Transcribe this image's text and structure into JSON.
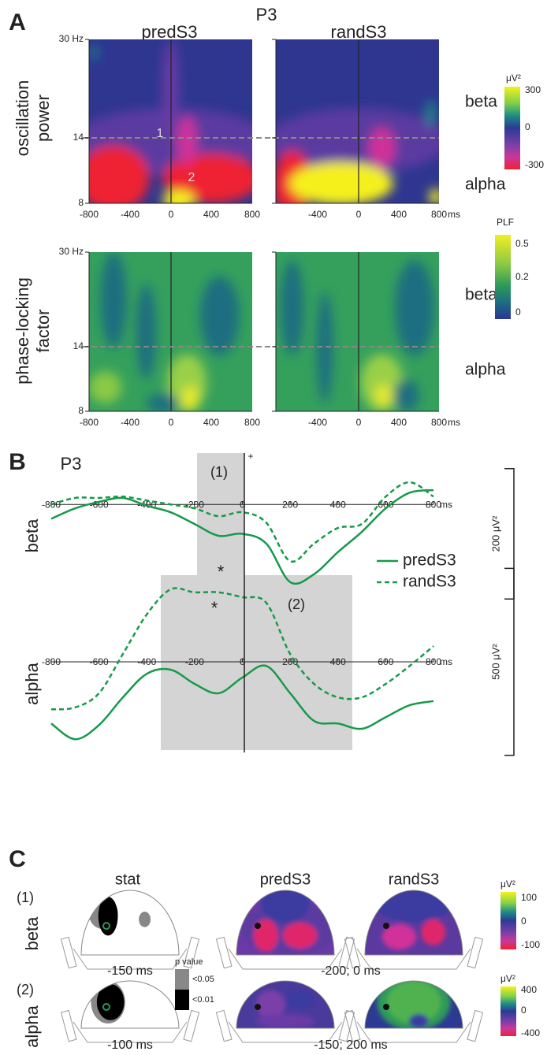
{
  "panel_a": {
    "label": "A",
    "title": "P3",
    "conditions": [
      "predS3",
      "randS3"
    ],
    "xticks": [
      "-800",
      "-400",
      "0",
      "400",
      "800"
    ],
    "xunit": "ms",
    "rows": [
      {
        "ylabel": [
          "oscillation",
          "power"
        ],
        "yticks": [
          "30 Hz",
          "14",
          "8"
        ],
        "bands": [
          "beta",
          "alpha"
        ],
        "colorbar": {
          "unit": "μV²",
          "ticks": [
            "300",
            "0",
            "-300"
          ]
        },
        "annotations": [
          "1",
          "2"
        ]
      },
      {
        "ylabel": [
          "phase-locking",
          "factor"
        ],
        "yticks": [
          "30 Hz",
          "14",
          "8"
        ],
        "bands": [
          "beta",
          "alpha"
        ],
        "colorbar": {
          "unit": "PLF",
          "ticks": [
            "0.5",
            "0.2",
            "0"
          ]
        }
      }
    ]
  },
  "panel_b": {
    "label": "B",
    "windows": [
      "(1)",
      "(2)"
    ],
    "stars": [
      "*",
      "*"
    ],
    "plus": "+"
  },
  "chart_data": [
    {
      "type": "line",
      "title": "P3",
      "ylabel": "beta",
      "x": [
        -800,
        -700,
        -600,
        -500,
        -400,
        -300,
        -200,
        -100,
        0,
        100,
        200,
        300,
        400,
        500,
        600,
        700,
        800
      ],
      "xlim": [
        -800,
        800
      ],
      "xticks": [
        -800,
        -600,
        -400,
        -200,
        0,
        200,
        400,
        600,
        800
      ],
      "xunit": "ms",
      "ylim": [
        -170,
        80
      ],
      "scalebar": {
        "value": 200,
        "label": "200 μV²"
      },
      "series": [
        {
          "name": "predS3",
          "color": "#17994a",
          "style": "solid",
          "values": [
            -22,
            -6,
            4,
            10,
            -2,
            -12,
            -30,
            -48,
            -45,
            -60,
            -119,
            -107,
            -73,
            -42,
            -6,
            18,
            22
          ]
        },
        {
          "name": "randS3",
          "color": "#17994a",
          "style": "dashed",
          "values": [
            0,
            10,
            10,
            12,
            6,
            0,
            -6,
            -18,
            -12,
            -28,
            -87,
            -60,
            -36,
            -30,
            12,
            34,
            12
          ]
        }
      ]
    },
    {
      "type": "line",
      "ylabel": "alpha",
      "x": [
        -800,
        -700,
        -600,
        -500,
        -400,
        -300,
        -200,
        -100,
        0,
        100,
        200,
        300,
        400,
        500,
        600,
        700,
        800
      ],
      "xlim": [
        -800,
        800
      ],
      "xticks": [
        -800,
        -600,
        -400,
        -200,
        0,
        200,
        400,
        600,
        800
      ],
      "xunit": "ms",
      "ylim": [
        -255,
        255
      ],
      "scalebar": {
        "value": 500,
        "label": "500 μV²"
      },
      "series": [
        {
          "color": "#17994a",
          "style": "solid",
          "values": [
            -165,
            -207,
            -169,
            -95,
            -32,
            -21,
            -59,
            -84,
            -42,
            -11,
            -84,
            -158,
            -165,
            -179,
            -148,
            -116,
            -105
          ]
        },
        {
          "color": "#17994a",
          "style": "dashed",
          "values": [
            -127,
            -122,
            -84,
            21,
            127,
            194,
            186,
            186,
            173,
            158,
            21,
            -59,
            -95,
            -95,
            -59,
            -11,
            42
          ]
        }
      ]
    }
  ],
  "panel_c": {
    "label": "C",
    "columns": [
      "stat",
      "predS3",
      "randS3"
    ],
    "rows": [
      {
        "id": "(1)",
        "band": "beta",
        "stat_time": "-150 ms",
        "map_time": "-200; 0 ms",
        "colorbar": {
          "unit": "μV²",
          "ticks": [
            "100",
            "0",
            "-100"
          ]
        }
      },
      {
        "id": "(2)",
        "band": "alpha",
        "stat_time": "-100 ms",
        "map_time": "-150; 200 ms",
        "colorbar": {
          "unit": "μV²",
          "ticks": [
            "400",
            "0",
            "-400"
          ]
        }
      }
    ],
    "pvalue": {
      "title": "p value",
      "levels": [
        "<0.05",
        "<0.01"
      ]
    }
  }
}
